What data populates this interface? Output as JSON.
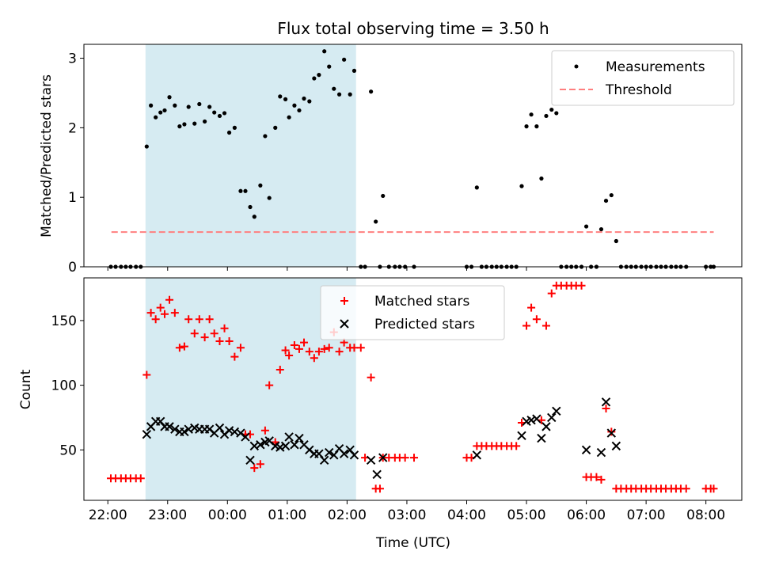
{
  "title": "Flux total observing time = 3.50 h",
  "xlabel": "Time (UTC)",
  "x_tick_labels": [
    "22:00",
    "23:00",
    "00:00",
    "01:00",
    "02:00",
    "03:00",
    "04:00",
    "05:00",
    "06:00",
    "07:00",
    "08:00"
  ],
  "colors": {
    "measurements": "#000000",
    "threshold": "#ff7f7f",
    "matched": "#ff0000",
    "predicted": "#000000",
    "shade": "#add8e6"
  },
  "chart_data": [
    {
      "type": "scatter",
      "panel": "top",
      "ylabel": "Matched/Predicted stars",
      "ylim": [
        0,
        3.2
      ],
      "y_ticks": [
        0,
        1,
        2,
        3
      ],
      "xlim_hours": [
        21.6,
        32.6
      ],
      "shaded_span_hours": [
        22.63,
        26.15
      ],
      "legend": {
        "position": "top-right",
        "entries": [
          "Measurements",
          "Threshold"
        ]
      },
      "threshold": {
        "name": "Threshold",
        "y": 0.5,
        "x_range_hours": [
          22.06,
          32.13
        ]
      },
      "series": [
        {
          "name": "Measurements",
          "x_hours": [
            22.05,
            22.13,
            22.22,
            22.3,
            22.38,
            22.47,
            22.55,
            22.65,
            22.72,
            22.8,
            22.88,
            22.95,
            23.03,
            23.12,
            23.2,
            23.28,
            23.35,
            23.45,
            23.53,
            23.62,
            23.7,
            23.78,
            23.87,
            23.95,
            24.03,
            24.12,
            24.22,
            24.3,
            24.38,
            24.45,
            24.55,
            24.63,
            24.7,
            24.8,
            24.88,
            24.97,
            25.03,
            25.12,
            25.2,
            25.28,
            25.37,
            25.45,
            25.53,
            25.62,
            25.7,
            25.78,
            25.87,
            25.95,
            26.05,
            26.12,
            26.23,
            26.3,
            26.4,
            26.48,
            26.55,
            26.6,
            26.7,
            26.8,
            26.88,
            26.97,
            27.12,
            28.0,
            28.08,
            28.17,
            28.25,
            28.33,
            28.42,
            28.5,
            28.58,
            28.67,
            28.75,
            28.83,
            28.92,
            29.0,
            29.08,
            29.17,
            29.25,
            29.33,
            29.42,
            29.5,
            29.58,
            29.67,
            29.75,
            29.83,
            29.92,
            30.0,
            30.08,
            30.17,
            30.25,
            30.33,
            30.42,
            30.5,
            30.58,
            30.67,
            30.75,
            30.83,
            30.92,
            31.0,
            31.08,
            31.17,
            31.25,
            31.33,
            31.42,
            31.5,
            31.58,
            31.67,
            32.0,
            32.08,
            32.13
          ],
          "y": [
            0,
            0,
            0,
            0,
            0,
            0,
            0,
            1.73,
            2.32,
            2.15,
            2.22,
            2.25,
            2.44,
            2.32,
            2.02,
            2.05,
            2.3,
            2.06,
            2.34,
            2.09,
            2.3,
            2.22,
            2.17,
            2.21,
            1.93,
            2.0,
            1.09,
            1.09,
            0.86,
            0.72,
            1.17,
            1.88,
            0.99,
            2.0,
            2.45,
            2.41,
            2.15,
            2.32,
            2.25,
            2.42,
            2.38,
            2.71,
            2.76,
            3.1,
            2.88,
            2.56,
            2.48,
            2.98,
            2.48,
            2.82,
            0,
            0,
            2.52,
            0.65,
            0,
            1.02,
            0,
            0,
            0,
            0,
            0,
            0,
            0,
            1.14,
            0,
            0,
            0,
            0,
            0,
            0,
            0,
            0,
            1.16,
            2.02,
            2.19,
            2.02,
            1.27,
            2.17,
            2.26,
            2.21,
            0,
            0,
            0,
            0,
            0,
            0.58,
            0,
            0,
            0.54,
            0.95,
            1.03,
            0.37,
            0,
            0,
            0,
            0,
            0,
            0,
            0,
            0,
            0,
            0,
            0,
            0,
            0,
            0,
            0,
            0,
            0
          ]
        }
      ]
    },
    {
      "type": "scatter",
      "panel": "bottom",
      "ylabel": "Count",
      "ylim": [
        11,
        183
      ],
      "y_ticks": [
        50,
        100,
        150
      ],
      "xlim_hours": [
        21.6,
        32.6
      ],
      "shaded_span_hours": [
        22.63,
        26.15
      ],
      "legend": {
        "position": "top-center",
        "entries": [
          "Matched stars",
          "Predicted stars"
        ]
      },
      "series": [
        {
          "name": "Matched stars",
          "marker": "plus",
          "x_hours": [
            22.05,
            22.13,
            22.22,
            22.3,
            22.38,
            22.47,
            22.55,
            22.65,
            22.72,
            22.8,
            22.88,
            22.95,
            23.03,
            23.12,
            23.2,
            23.28,
            23.35,
            23.45,
            23.53,
            23.62,
            23.7,
            23.78,
            23.87,
            23.95,
            24.03,
            24.12,
            24.22,
            24.3,
            24.38,
            24.45,
            24.55,
            24.63,
            24.7,
            24.8,
            24.88,
            24.97,
            25.03,
            25.12,
            25.2,
            25.28,
            25.37,
            25.45,
            25.53,
            25.62,
            25.7,
            25.78,
            25.87,
            25.95,
            26.05,
            26.12,
            26.23,
            26.3,
            26.4,
            26.48,
            26.55,
            26.6,
            26.7,
            26.8,
            26.88,
            26.97,
            27.12,
            28.0,
            28.08,
            28.17,
            28.25,
            28.33,
            28.42,
            28.5,
            28.58,
            28.67,
            28.75,
            28.83,
            28.92,
            29.0,
            29.08,
            29.17,
            29.25,
            29.33,
            29.42,
            29.5,
            29.58,
            29.67,
            29.75,
            29.83,
            29.92,
            30.0,
            30.08,
            30.17,
            30.25,
            30.33,
            30.42,
            30.5,
            30.58,
            30.67,
            30.75,
            30.83,
            30.92,
            31.0,
            31.08,
            31.17,
            31.25,
            31.33,
            31.42,
            31.5,
            31.58,
            31.67,
            32.0,
            32.08,
            32.13
          ],
          "y": [
            28,
            28,
            28,
            28,
            28,
            28,
            28,
            108,
            156,
            151,
            160,
            155,
            166,
            156,
            129,
            130,
            151,
            140,
            151,
            137,
            151,
            140,
            134,
            144,
            134,
            122,
            129,
            62,
            62,
            36,
            39,
            65,
            100,
            56,
            112,
            127,
            123,
            131,
            128,
            133,
            126,
            121,
            126,
            128,
            129,
            141,
            126,
            133,
            129,
            129,
            129,
            44,
            106,
            20,
            20,
            44,
            44,
            44,
            44,
            44,
            44,
            44,
            44,
            53,
            53,
            53,
            53,
            53,
            53,
            53,
            53,
            53,
            71,
            146,
            160,
            151,
            73,
            146,
            171,
            177,
            177,
            177,
            177,
            177,
            177,
            29,
            29,
            29,
            27,
            82,
            64,
            20,
            20,
            20,
            20,
            20,
            20,
            20,
            20,
            20,
            20,
            20,
            20,
            20,
            20,
            20,
            20,
            20,
            20
          ]
        },
        {
          "name": "Predicted stars",
          "marker": "x",
          "x_hours": [
            22.65,
            22.72,
            22.8,
            22.88,
            22.95,
            23.03,
            23.12,
            23.2,
            23.28,
            23.35,
            23.45,
            23.53,
            23.62,
            23.7,
            23.78,
            23.87,
            23.95,
            24.03,
            24.12,
            24.22,
            24.3,
            24.38,
            24.45,
            24.55,
            24.63,
            24.7,
            24.8,
            24.88,
            24.97,
            25.03,
            25.12,
            25.2,
            25.28,
            25.37,
            25.45,
            25.53,
            25.62,
            25.7,
            25.78,
            25.87,
            25.95,
            26.05,
            26.12,
            26.4,
            26.5,
            26.6,
            28.17,
            28.92,
            29.0,
            29.08,
            29.17,
            29.25,
            29.33,
            29.42,
            29.5,
            30.0,
            30.25,
            30.33,
            30.42,
            30.5
          ],
          "y": [
            62,
            68,
            72,
            72,
            68,
            68,
            66,
            64,
            64,
            66,
            67,
            66,
            66,
            66,
            63,
            67,
            62,
            65,
            64,
            63,
            60,
            42,
            53,
            54,
            56,
            57,
            53,
            52,
            53,
            60,
            54,
            59,
            54,
            50,
            47,
            47,
            42,
            48,
            46,
            51,
            47,
            50,
            46,
            42,
            31,
            44,
            46,
            61,
            72,
            73,
            74,
            59,
            68,
            75,
            80,
            50,
            48,
            87,
            63,
            53
          ]
        }
      ]
    }
  ]
}
